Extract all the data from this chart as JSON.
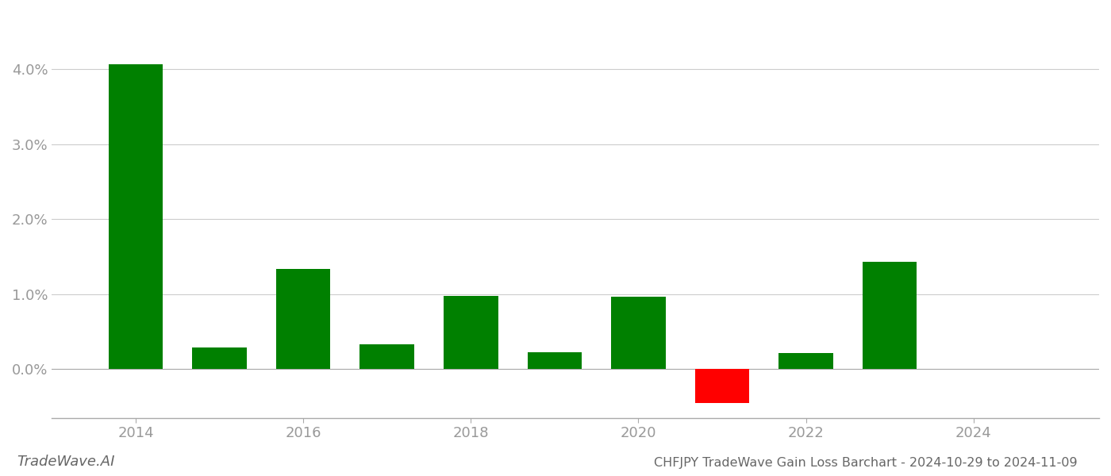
{
  "years": [
    2014,
    2015,
    2016,
    2017,
    2018,
    2019,
    2020,
    2021,
    2022,
    2023,
    2024
  ],
  "values": [
    0.0407,
    0.0029,
    0.0133,
    0.0033,
    0.0097,
    0.0022,
    0.0096,
    -0.0045,
    0.0021,
    0.0143,
    0.0
  ],
  "colors": [
    "#008000",
    "#008000",
    "#008000",
    "#008000",
    "#008000",
    "#008000",
    "#008000",
    "#ff0000",
    "#008000",
    "#008000",
    "#008000"
  ],
  "title": "CHFJPY TradeWave Gain Loss Barchart - 2024-10-29 to 2024-11-09",
  "watermark": "TradeWave.AI",
  "xlim": [
    2013.0,
    2025.5
  ],
  "ylim": [
    -0.0065,
    0.047
  ],
  "yticks": [
    0.0,
    0.01,
    0.02,
    0.03,
    0.04
  ],
  "xticks": [
    2014,
    2016,
    2018,
    2020,
    2022,
    2024
  ],
  "bar_width": 0.65,
  "figsize": [
    14.0,
    6.0
  ],
  "dpi": 100,
  "background_color": "#ffffff",
  "grid_color": "#cccccc",
  "tick_color": "#999999",
  "title_fontsize": 11.5,
  "watermark_fontsize": 13,
  "tick_fontsize": 13
}
